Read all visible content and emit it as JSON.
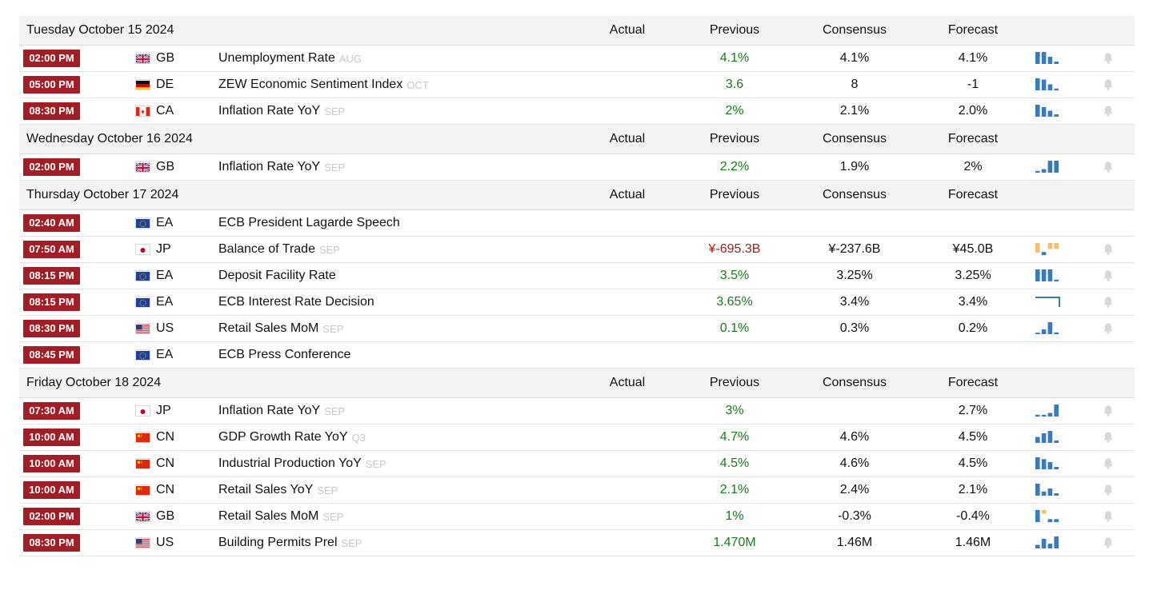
{
  "header_labels": {
    "actual": "Actual",
    "previous": "Previous",
    "consensus": "Consensus",
    "forecast": "Forecast"
  },
  "colors": {
    "time_badge": "#a21d24",
    "previous_up": "#1a7a1a",
    "previous_down": "#a51b1b",
    "spark_blue": "#3a7ab8",
    "spark_orange": "#f0c070",
    "bell": "#d8d8d8"
  },
  "days": [
    {
      "date": "Tuesday October 15 2024",
      "events": [
        {
          "time": "02:00 PM",
          "flag": "gb-flag-icon",
          "country": "GB",
          "event": "Unemployment Rate",
          "ref": "AUG",
          "actual": "",
          "previous": "4.1%",
          "previous_color": "green",
          "consensus": "4.1%",
          "forecast": "4.1%",
          "spark": [
            1,
            1,
            0.6,
            0.2
          ],
          "spark_colors": [
            "b",
            "b",
            "b",
            "b"
          ],
          "bell": true
        },
        {
          "time": "05:00 PM",
          "flag": "de-flag-icon",
          "country": "DE",
          "event": "ZEW Economic Sentiment Index",
          "ref": "OCT",
          "actual": "",
          "previous": "3.6",
          "previous_color": "green",
          "consensus": "8",
          "forecast": "-1",
          "spark": [
            1,
            0.9,
            0.5,
            0.15
          ],
          "spark_colors": [
            "b",
            "b",
            "b",
            "b"
          ],
          "bell": true
        },
        {
          "time": "08:30 PM",
          "flag": "ca-flag-icon",
          "country": "CA",
          "event": "Inflation Rate YoY",
          "ref": "SEP",
          "actual": "",
          "previous": "2%",
          "previous_color": "green",
          "consensus": "2.1%",
          "forecast": "2.0%",
          "spark": [
            1,
            0.8,
            0.5,
            0.2
          ],
          "spark_colors": [
            "b",
            "b",
            "b",
            "b"
          ],
          "bell": true
        }
      ]
    },
    {
      "date": "Wednesday October 16 2024",
      "events": [
        {
          "time": "02:00 PM",
          "flag": "gb-flag-icon",
          "country": "GB",
          "event": "Inflation Rate YoY",
          "ref": "SEP",
          "actual": "",
          "previous": "2.2%",
          "previous_color": "green",
          "consensus": "1.9%",
          "forecast": "2%",
          "spark": [
            0.15,
            0.3,
            1,
            1
          ],
          "spark_colors": [
            "b",
            "b",
            "b",
            "b"
          ],
          "bell": true
        }
      ]
    },
    {
      "date": "Thursday October 17 2024",
      "events": [
        {
          "time": "02:40 AM",
          "flag": "eu-flag-icon",
          "country": "EA",
          "event": "ECB President Lagarde Speech",
          "ref": "",
          "actual": "",
          "previous": "",
          "previous_color": "",
          "consensus": "",
          "forecast": "",
          "spark": [],
          "spark_colors": [],
          "bell": false
        },
        {
          "time": "07:50 AM",
          "flag": "jp-flag-icon",
          "country": "JP",
          "event": "Balance of Trade",
          "ref": "SEP",
          "actual": "",
          "previous": "¥-695.3B",
          "previous_color": "red",
          "consensus": "¥-237.6B",
          "forecast": "¥45.0B",
          "spark": [
            -0.8,
            0.25,
            -0.5,
            -0.5
          ],
          "spark_colors": [
            "o",
            "b",
            "o",
            "o"
          ],
          "bell": true
        },
        {
          "time": "08:15 PM",
          "flag": "eu-flag-icon",
          "country": "EA",
          "event": "Deposit Facility Rate",
          "ref": "",
          "actual": "",
          "previous": "3.5%",
          "previous_color": "green",
          "consensus": "3.25%",
          "forecast": "3.25%",
          "spark": [
            1,
            1,
            1,
            0.15
          ],
          "spark_colors": [
            "b",
            "b",
            "b",
            "b"
          ],
          "bell": true
        },
        {
          "time": "08:15 PM",
          "flag": "eu-flag-icon",
          "country": "EA",
          "event": "ECB Interest Rate Decision",
          "ref": "",
          "actual": "",
          "previous": "3.65%",
          "previous_color": "green",
          "consensus": "3.4%",
          "forecast": "3.4%",
          "spark": [],
          "spark_colors": [],
          "spark_line": true,
          "bell": true
        },
        {
          "time": "08:30 PM",
          "flag": "us-flag-icon",
          "country": "US",
          "event": "Retail Sales MoM",
          "ref": "SEP",
          "actual": "",
          "previous": "0.1%",
          "previous_color": "green",
          "consensus": "0.3%",
          "forecast": "0.2%",
          "spark": [
            0.1,
            0.4,
            1,
            0.15
          ],
          "spark_colors": [
            "b",
            "b",
            "b",
            "b"
          ],
          "bell": true
        },
        {
          "time": "08:45 PM",
          "flag": "eu-flag-icon",
          "country": "EA",
          "event": "ECB Press Conference",
          "ref": "",
          "actual": "",
          "previous": "",
          "previous_color": "",
          "consensus": "",
          "forecast": "",
          "spark": [],
          "spark_colors": [],
          "bell": false
        }
      ]
    },
    {
      "date": "Friday October 18 2024",
      "events": [
        {
          "time": "07:30 AM",
          "flag": "jp-flag-icon",
          "country": "JP",
          "event": "Inflation Rate YoY",
          "ref": "SEP",
          "actual": "",
          "previous": "3%",
          "previous_color": "green",
          "consensus": "",
          "forecast": "2.7%",
          "spark": [
            0.15,
            0.15,
            0.3,
            1
          ],
          "spark_colors": [
            "b",
            "b",
            "b",
            "b"
          ],
          "bell": true
        },
        {
          "time": "10:00 AM",
          "flag": "cn-flag-icon",
          "country": "CN",
          "event": "GDP Growth Rate YoY",
          "ref": "Q3",
          "actual": "",
          "previous": "4.7%",
          "previous_color": "green",
          "consensus": "4.6%",
          "forecast": "4.5%",
          "spark": [
            0.5,
            0.8,
            1,
            0.2
          ],
          "spark_colors": [
            "b",
            "b",
            "b",
            "b"
          ],
          "bell": true
        },
        {
          "time": "10:00 AM",
          "flag": "cn-flag-icon",
          "country": "CN",
          "event": "Industrial Production YoY",
          "ref": "SEP",
          "actual": "",
          "previous": "4.5%",
          "previous_color": "green",
          "consensus": "4.6%",
          "forecast": "4.5%",
          "spark": [
            1,
            0.85,
            0.6,
            0.2
          ],
          "spark_colors": [
            "b",
            "b",
            "b",
            "b"
          ],
          "bell": true
        },
        {
          "time": "10:00 AM",
          "flag": "cn-flag-icon",
          "country": "CN",
          "event": "Retail Sales YoY",
          "ref": "SEP",
          "actual": "",
          "previous": "2.1%",
          "previous_color": "green",
          "consensus": "2.4%",
          "forecast": "2.1%",
          "spark": [
            1,
            0.35,
            0.6,
            0.2
          ],
          "spark_colors": [
            "b",
            "b",
            "b",
            "b"
          ],
          "bell": true
        },
        {
          "time": "02:00 PM",
          "flag": "gb-flag-icon",
          "country": "GB",
          "event": "Retail Sales MoM",
          "ref": "SEP",
          "actual": "",
          "previous": "1%",
          "previous_color": "green",
          "consensus": "-0.3%",
          "forecast": "-0.4%",
          "spark": [
            1,
            -0.3,
            0.25,
            0.25
          ],
          "spark_colors": [
            "b",
            "o",
            "b",
            "b"
          ],
          "bell": true
        },
        {
          "time": "08:30 PM",
          "flag": "us-flag-icon",
          "country": "US",
          "event": "Building Permits Prel",
          "ref": "SEP",
          "actual": "",
          "previous": "1.470M",
          "previous_color": "green",
          "consensus": "1.46M",
          "forecast": "1.46M",
          "spark": [
            0.3,
            0.8,
            0.4,
            1
          ],
          "spark_colors": [
            "b",
            "b",
            "b",
            "b"
          ],
          "bell": true
        }
      ]
    }
  ]
}
